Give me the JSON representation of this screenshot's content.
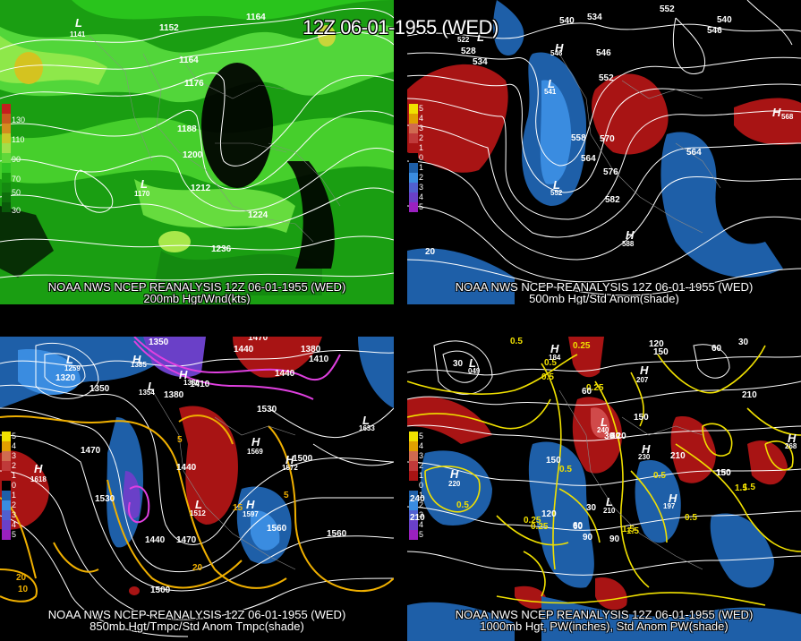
{
  "title": "12Z 06-01-1955 (WED)",
  "panels": [
    {
      "id": "p1",
      "caption1": "NOAA NWS NCEP REANALYSIS 12Z 06-01-1955 (WED)",
      "caption2": "200mb Hgt/Wnd(kts)",
      "legend": [
        "130",
        "110",
        "90",
        "70",
        "50",
        "30"
      ],
      "contour_labels": [
        "1164",
        "1152",
        "1164",
        "1176",
        "1188",
        "1200",
        "1212",
        "1224",
        "1236"
      ],
      "centers": [
        "L",
        "L"
      ],
      "center_values": [
        "1141",
        "1170"
      ]
    },
    {
      "id": "p2",
      "caption1": "NOAA NWS NCEP REANALYSIS 12Z 06-01-1955 (WED)",
      "caption2": "500mb Hgt/Std Anom(shade)",
      "legend": [
        "5",
        "4",
        "3",
        "2",
        "1",
        "0",
        "1",
        "2",
        "3",
        "4",
        "5"
      ],
      "contour_labels": [
        "540",
        "534",
        "552",
        "540",
        "546",
        "528",
        "534",
        "546",
        "552",
        "558",
        "570",
        "564",
        "576",
        "582",
        "564",
        "20"
      ],
      "centers": [
        "L",
        "H",
        "L",
        "L",
        "H",
        "H"
      ],
      "center_values": [
        "522",
        "546",
        "541",
        "552",
        "588",
        "568"
      ]
    },
    {
      "id": "p3",
      "caption1": "NOAA NWS NCEP REANALYSIS 12Z 06-01-1955 (WED)",
      "caption2": "850mb Hgt/Tmpc/Std Anom Tmpc(shade)",
      "legend": [
        "5",
        "4",
        "3",
        "2",
        "1",
        "0",
        "1",
        "2",
        "3",
        "4",
        "5"
      ],
      "contour_labels": [
        "1320",
        "1350",
        "1470",
        "1440",
        "1380",
        "1410",
        "1350",
        "1320",
        "1410",
        "1440",
        "1380",
        "1530",
        "1500",
        "1440",
        "1530",
        "1470",
        "1440",
        "1470",
        "1560",
        "1500",
        "1560",
        "20",
        "10",
        "5",
        "5",
        "20",
        "15"
      ],
      "centers": [
        "L",
        "H",
        "H",
        "L",
        "H",
        "H",
        "H",
        "L",
        "H",
        "L"
      ],
      "center_values": [
        "1259",
        "1385",
        "1380",
        "1354",
        "1569",
        "1572",
        "1618",
        "1512",
        "1597",
        "1633"
      ]
    },
    {
      "id": "p4",
      "caption1": "NOAA NWS NCEP REANALYSIS 12Z 06-01-1955 (WED)",
      "caption2": "1000mb Hgt, PW(inches), Std Anom PW(shade)",
      "legend": [
        "5",
        "4",
        "3",
        "2",
        "1",
        "0",
        "1",
        "2",
        "3",
        "4",
        "5"
      ],
      "contour_labels": [
        "0.5",
        "0.25",
        "0.5",
        "120",
        "150",
        "60",
        "30",
        "0.5",
        "0.25",
        "150",
        "120",
        "210",
        "30",
        "60",
        "150",
        "90",
        "60",
        "0.5",
        "30",
        "1.5",
        "0.5",
        "0.25",
        "120",
        "60",
        "90",
        "1.5",
        "0.5",
        "150",
        "210",
        "240",
        "210",
        "30",
        "60",
        "1.5",
        "0.5",
        "150",
        "1.5",
        "0.25"
      ],
      "centers": [
        "L",
        "H",
        "H",
        "H",
        "H",
        "H",
        "L",
        "L",
        "H"
      ],
      "center_values": [
        "049",
        "184",
        "207",
        "220",
        "230",
        "197",
        "210",
        "240",
        "268"
      ]
    }
  ]
}
